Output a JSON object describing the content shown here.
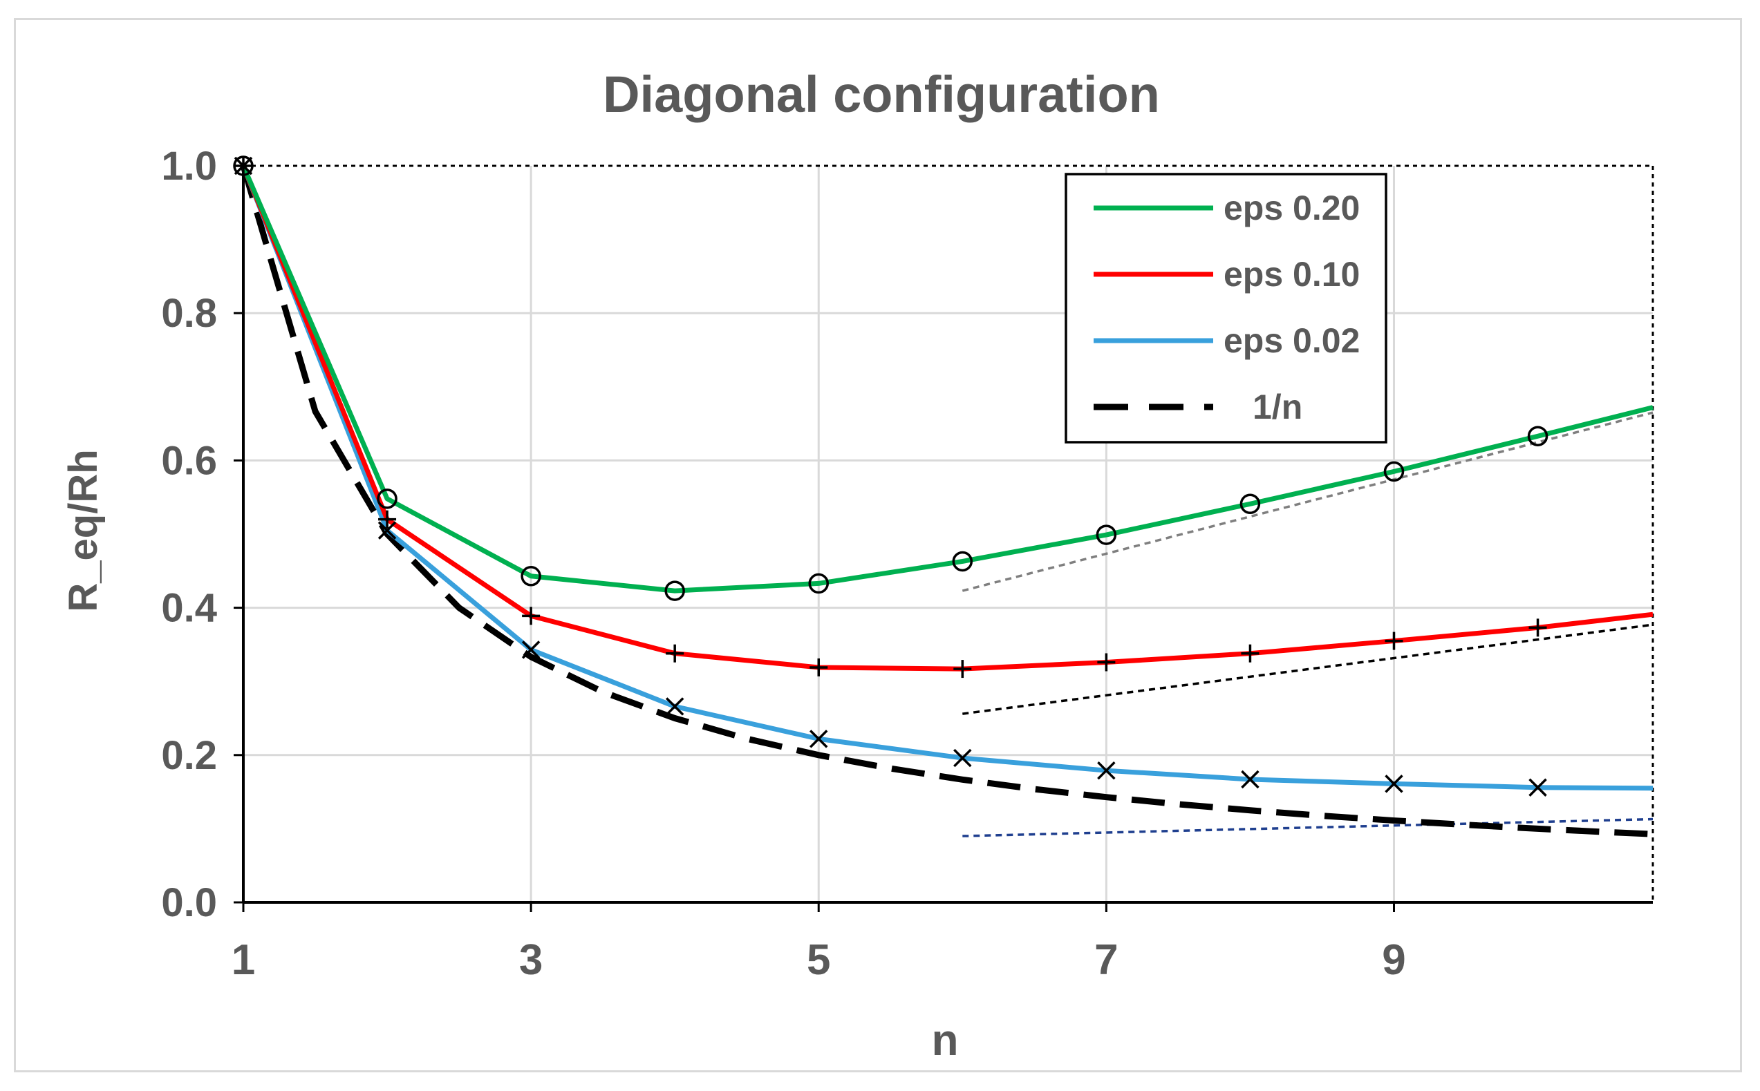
{
  "chart_data": {
    "type": "line",
    "title": "Diagonal configuration",
    "xlabel": "n",
    "ylabel": "R_eq/Rh",
    "xlim": [
      1,
      10.8
    ],
    "ylim": [
      0,
      1
    ],
    "x_ticks": [
      "1",
      "3",
      "5",
      "7",
      "9"
    ],
    "y_ticks": [
      "0.0",
      "0.2",
      "0.4",
      "0.6",
      "0.8",
      "1.0"
    ],
    "grid": true,
    "legend_position": "top-right",
    "series": [
      {
        "name": "eps 0.20",
        "color": "#00b050",
        "style": "solid",
        "marker": "circle",
        "x": [
          1,
          2,
          3,
          4,
          5,
          6,
          7,
          8,
          9,
          10,
          10.8
        ],
        "y": [
          1.0,
          0.548,
          0.443,
          0.423,
          0.433,
          0.463,
          0.499,
          0.541,
          0.585,
          0.633,
          0.672
        ]
      },
      {
        "name": "eps 0.10",
        "color": "#ff0000",
        "style": "solid",
        "marker": "plus",
        "x": [
          1,
          2,
          3,
          4,
          5,
          6,
          7,
          8,
          9,
          10,
          10.8
        ],
        "y": [
          1.0,
          0.52,
          0.389,
          0.338,
          0.319,
          0.317,
          0.326,
          0.338,
          0.355,
          0.373,
          0.391
        ]
      },
      {
        "name": "eps 0.02",
        "color": "#39a0dc",
        "style": "solid",
        "marker": "x",
        "x": [
          1,
          2,
          3,
          4,
          5,
          6,
          7,
          8,
          9,
          10,
          10.8
        ],
        "y": [
          1.0,
          0.505,
          0.343,
          0.266,
          0.222,
          0.196,
          0.179,
          0.167,
          0.161,
          0.156,
          0.155
        ]
      },
      {
        "name": "1/n",
        "color": "#000000",
        "style": "dashed",
        "marker": "none",
        "x": [
          1,
          1.5,
          2,
          2.5,
          3,
          3.5,
          4,
          4.5,
          5,
          5.5,
          6,
          6.5,
          7,
          7.5,
          8,
          8.5,
          9,
          9.5,
          10,
          10.4,
          10.8
        ],
        "y": [
          1.0,
          0.6667,
          0.5,
          0.4,
          0.3333,
          0.2857,
          0.25,
          0.2222,
          0.2,
          0.1818,
          0.1667,
          0.1538,
          0.1429,
          0.1333,
          0.125,
          0.1176,
          0.1111,
          0.1053,
          0.1,
          0.0962,
          0.0926
        ]
      }
    ],
    "asymptotes": [
      {
        "color": "#7f7f7f",
        "x": [
          6,
          10.8
        ],
        "y": [
          0.423,
          0.665
        ]
      },
      {
        "color": "#000000",
        "x": [
          6,
          10.8
        ],
        "y": [
          0.256,
          0.377
        ]
      },
      {
        "color": "#1f3f8f",
        "x": [
          6,
          10.8
        ],
        "y": [
          0.09,
          0.113
        ]
      }
    ]
  }
}
